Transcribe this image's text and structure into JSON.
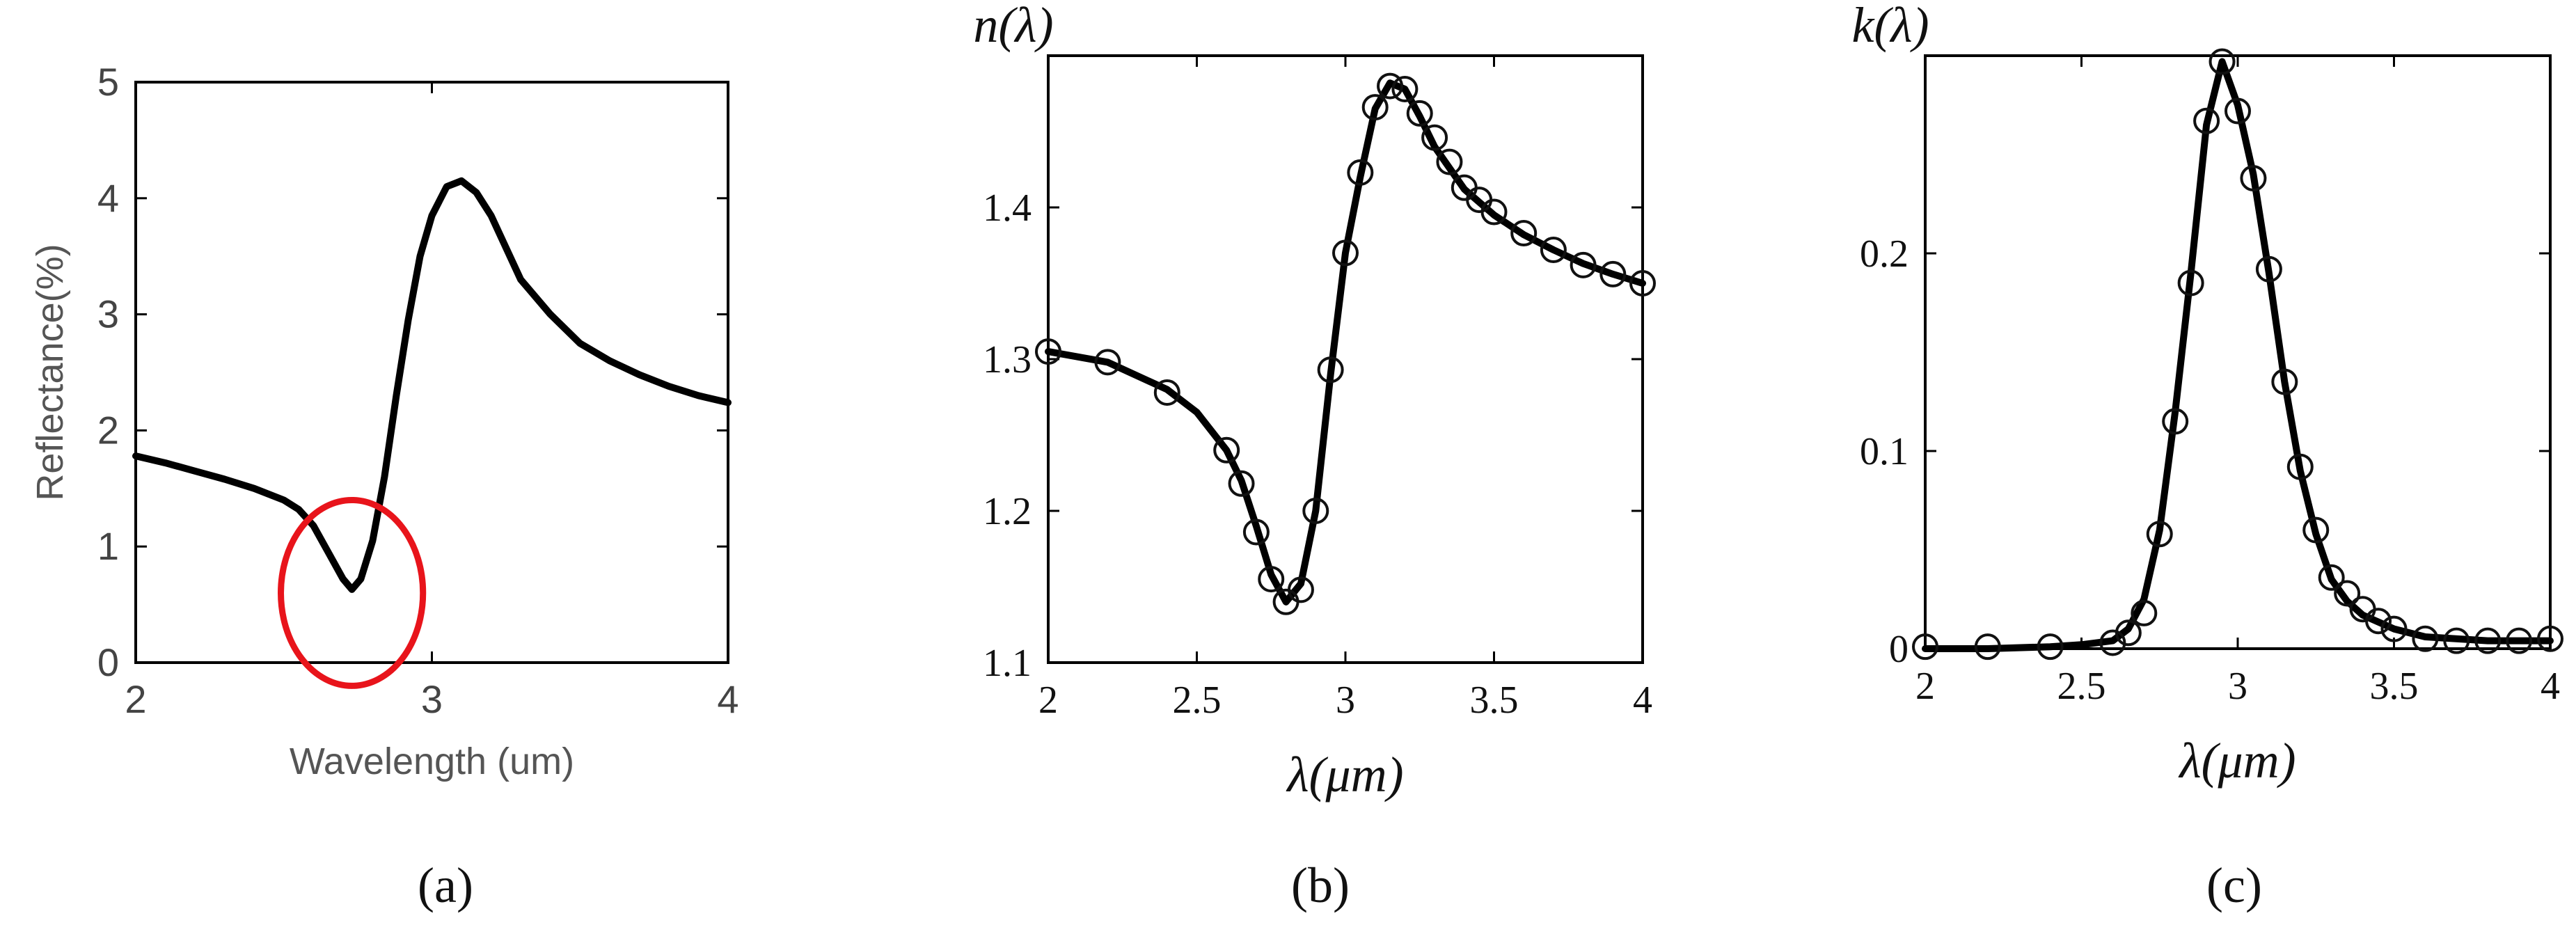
{
  "chart_data": [
    {
      "type": "line",
      "panel": "(a)",
      "title": "",
      "xlabel": "Wavelength (um)",
      "ylabel": "Reflectance(%)",
      "xlim": [
        2,
        4
      ],
      "ylim": [
        0,
        5
      ],
      "xticks": [
        2,
        3,
        4
      ],
      "yticks": [
        0,
        1,
        2,
        3,
        4,
        5
      ],
      "grid": false,
      "x": [
        2.0,
        2.1,
        2.2,
        2.3,
        2.4,
        2.5,
        2.55,
        2.6,
        2.65,
        2.7,
        2.73,
        2.76,
        2.8,
        2.84,
        2.88,
        2.92,
        2.96,
        3.0,
        3.05,
        3.1,
        3.15,
        3.2,
        3.3,
        3.4,
        3.5,
        3.6,
        3.7,
        3.8,
        3.9,
        4.0
      ],
      "y": [
        1.78,
        1.72,
        1.65,
        1.58,
        1.5,
        1.4,
        1.32,
        1.18,
        0.95,
        0.72,
        0.63,
        0.72,
        1.05,
        1.6,
        2.3,
        2.95,
        3.5,
        3.85,
        4.1,
        4.15,
        4.05,
        3.85,
        3.3,
        3.0,
        2.75,
        2.6,
        2.48,
        2.38,
        2.3,
        2.24
      ],
      "annotation": {
        "type": "circle",
        "color": "#e8141b",
        "x": 2.73,
        "y": 0.6,
        "rx": 0.24,
        "ry": 0.8
      }
    },
    {
      "type": "line",
      "panel": "(b)",
      "title": "",
      "xlabel": "λ(μm)",
      "ylabel": "n(λ)",
      "xlim": [
        2,
        4
      ],
      "ylim": [
        1.1,
        1.5
      ],
      "xticks": [
        2,
        2.5,
        3,
        3.5,
        4
      ],
      "yticks": [
        1.1,
        1.2,
        1.3,
        1.4
      ],
      "grid": false,
      "curve": {
        "x": [
          2.0,
          2.2,
          2.4,
          2.5,
          2.6,
          2.65,
          2.7,
          2.75,
          2.8,
          2.85,
          2.9,
          2.95,
          3.0,
          3.05,
          3.1,
          3.15,
          3.2,
          3.25,
          3.3,
          3.4,
          3.5,
          3.6,
          3.7,
          3.8,
          3.9,
          4.0
        ],
        "y": [
          1.305,
          1.298,
          1.28,
          1.265,
          1.24,
          1.22,
          1.19,
          1.158,
          1.14,
          1.152,
          1.2,
          1.29,
          1.37,
          1.42,
          1.465,
          1.482,
          1.478,
          1.46,
          1.44,
          1.412,
          1.395,
          1.382,
          1.372,
          1.363,
          1.356,
          1.35
        ]
      },
      "markers": {
        "x": [
          2.0,
          2.2,
          2.4,
          2.6,
          2.65,
          2.7,
          2.75,
          2.8,
          2.85,
          2.9,
          2.95,
          3.0,
          3.05,
          3.1,
          3.15,
          3.2,
          3.25,
          3.3,
          3.35,
          3.4,
          3.45,
          3.5,
          3.6,
          3.7,
          3.8,
          3.9,
          4.0
        ],
        "y": [
          1.305,
          1.298,
          1.278,
          1.24,
          1.218,
          1.186,
          1.155,
          1.14,
          1.148,
          1.2,
          1.293,
          1.37,
          1.423,
          1.466,
          1.48,
          1.478,
          1.462,
          1.446,
          1.43,
          1.413,
          1.405,
          1.397,
          1.383,
          1.372,
          1.362,
          1.356,
          1.35
        ]
      }
    },
    {
      "type": "line",
      "panel": "(c)",
      "title": "",
      "xlabel": "λ(μm)",
      "ylabel": "k(λ)",
      "xlim": [
        2,
        4
      ],
      "ylim": [
        0,
        0.3
      ],
      "xticks": [
        2,
        2.5,
        3,
        3.5,
        4
      ],
      "yticks": [
        0,
        0.1,
        0.2
      ],
      "grid": false,
      "curve": {
        "x": [
          2.0,
          2.2,
          2.4,
          2.5,
          2.6,
          2.65,
          2.7,
          2.75,
          2.8,
          2.85,
          2.9,
          2.95,
          3.0,
          3.05,
          3.1,
          3.15,
          3.2,
          3.25,
          3.3,
          3.35,
          3.4,
          3.5,
          3.6,
          3.8,
          4.0
        ],
        "y": [
          0.0,
          0.0,
          0.001,
          0.002,
          0.004,
          0.01,
          0.025,
          0.06,
          0.12,
          0.19,
          0.265,
          0.297,
          0.275,
          0.24,
          0.19,
          0.135,
          0.09,
          0.058,
          0.035,
          0.024,
          0.017,
          0.01,
          0.006,
          0.004,
          0.004
        ]
      },
      "markers": {
        "x": [
          2.0,
          2.2,
          2.4,
          2.6,
          2.65,
          2.7,
          2.75,
          2.8,
          2.85,
          2.9,
          2.95,
          3.0,
          3.05,
          3.1,
          3.15,
          3.2,
          3.25,
          3.3,
          3.35,
          3.4,
          3.45,
          3.5,
          3.6,
          3.7,
          3.8,
          3.9,
          4.0
        ],
        "y": [
          0.001,
          0.001,
          0.001,
          0.003,
          0.008,
          0.018,
          0.058,
          0.115,
          0.185,
          0.267,
          0.297,
          0.272,
          0.238,
          0.192,
          0.135,
          0.092,
          0.06,
          0.036,
          0.028,
          0.02,
          0.014,
          0.01,
          0.005,
          0.004,
          0.004,
          0.004,
          0.005
        ]
      }
    }
  ],
  "captions": [
    "(a)",
    "(b)",
    "(c)"
  ]
}
